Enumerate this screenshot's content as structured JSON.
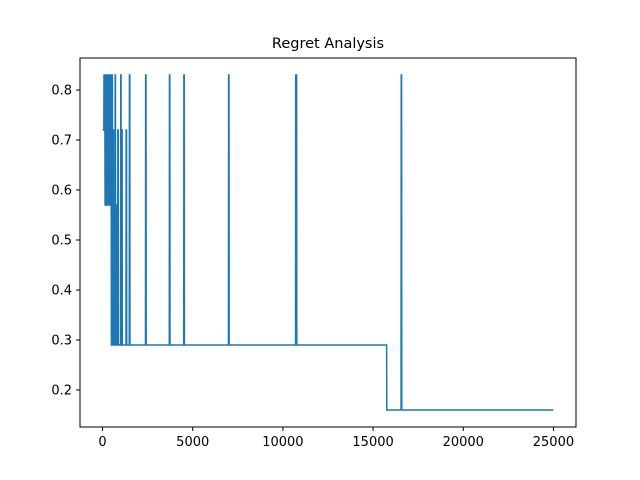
{
  "chart_data": {
    "type": "line",
    "title": "Regret Analysis",
    "xlabel": "",
    "ylabel": "",
    "xlim": [
      -1250,
      26250
    ],
    "ylim": [
      0.126,
      0.864
    ],
    "xticks": [
      0,
      5000,
      10000,
      15000,
      20000,
      25000
    ],
    "yticks": [
      0.2,
      0.3,
      0.4,
      0.5,
      0.6,
      0.7,
      0.8
    ],
    "grid": false,
    "legend": "none",
    "series": [
      {
        "color": "#1f77b4",
        "points": [
          [
            0,
            0.72
          ],
          [
            70,
            0.72
          ],
          [
            80,
            0.83
          ],
          [
            100,
            0.83
          ],
          [
            110,
            0.72
          ],
          [
            130,
            0.72
          ],
          [
            140,
            0.57
          ],
          [
            160,
            0.57
          ],
          [
            170,
            0.83
          ],
          [
            190,
            0.83
          ],
          [
            200,
            0.57
          ],
          [
            215,
            0.57
          ],
          [
            225,
            0.83
          ],
          [
            240,
            0.83
          ],
          [
            250,
            0.57
          ],
          [
            265,
            0.57
          ],
          [
            275,
            0.72
          ],
          [
            285,
            0.72
          ],
          [
            295,
            0.83
          ],
          [
            305,
            0.83
          ],
          [
            315,
            0.57
          ],
          [
            325,
            0.57
          ],
          [
            335,
            0.83
          ],
          [
            345,
            0.83
          ],
          [
            355,
            0.57
          ],
          [
            370,
            0.57
          ],
          [
            380,
            0.72
          ],
          [
            390,
            0.72
          ],
          [
            400,
            0.83
          ],
          [
            410,
            0.83
          ],
          [
            420,
            0.57
          ],
          [
            435,
            0.57
          ],
          [
            445,
            0.83
          ],
          [
            455,
            0.83
          ],
          [
            465,
            0.57
          ],
          [
            480,
            0.57
          ],
          [
            490,
            0.29
          ],
          [
            520,
            0.29
          ],
          [
            530,
            0.83
          ],
          [
            545,
            0.83
          ],
          [
            555,
            0.29
          ],
          [
            580,
            0.29
          ],
          [
            590,
            0.72
          ],
          [
            610,
            0.72
          ],
          [
            620,
            0.29
          ],
          [
            640,
            0.29
          ],
          [
            650,
            0.57
          ],
          [
            670,
            0.57
          ],
          [
            680,
            0.29
          ],
          [
            690,
            0.29
          ],
          [
            700,
            0.83
          ],
          [
            715,
            0.83
          ],
          [
            725,
            0.29
          ],
          [
            760,
            0.29
          ],
          [
            770,
            0.57
          ],
          [
            790,
            0.57
          ],
          [
            800,
            0.29
          ],
          [
            840,
            0.29
          ],
          [
            850,
            0.72
          ],
          [
            870,
            0.72
          ],
          [
            880,
            0.29
          ],
          [
            1000,
            0.29
          ],
          [
            1010,
            0.83
          ],
          [
            1025,
            0.83
          ],
          [
            1035,
            0.29
          ],
          [
            1060,
            0.29
          ],
          [
            1070,
            0.72
          ],
          [
            1085,
            0.72
          ],
          [
            1095,
            0.29
          ],
          [
            1300,
            0.29
          ],
          [
            1310,
            0.72
          ],
          [
            1330,
            0.72
          ],
          [
            1340,
            0.29
          ],
          [
            1480,
            0.29
          ],
          [
            1490,
            0.83
          ],
          [
            1510,
            0.83
          ],
          [
            1520,
            0.29
          ],
          [
            2380,
            0.29
          ],
          [
            2390,
            0.83
          ],
          [
            2410,
            0.83
          ],
          [
            2420,
            0.29
          ],
          [
            3700,
            0.29
          ],
          [
            3710,
            0.83
          ],
          [
            3730,
            0.83
          ],
          [
            3740,
            0.29
          ],
          [
            4500,
            0.29
          ],
          [
            4510,
            0.83
          ],
          [
            4530,
            0.83
          ],
          [
            4540,
            0.29
          ],
          [
            6980,
            0.29
          ],
          [
            6990,
            0.83
          ],
          [
            7010,
            0.83
          ],
          [
            7020,
            0.29
          ],
          [
            10700,
            0.29
          ],
          [
            10710,
            0.83
          ],
          [
            10760,
            0.83
          ],
          [
            10770,
            0.29
          ],
          [
            15750,
            0.29
          ],
          [
            15760,
            0.16
          ],
          [
            16550,
            0.16
          ],
          [
            16560,
            0.83
          ],
          [
            16580,
            0.83
          ],
          [
            16590,
            0.16
          ],
          [
            25000,
            0.16
          ]
        ]
      }
    ]
  }
}
